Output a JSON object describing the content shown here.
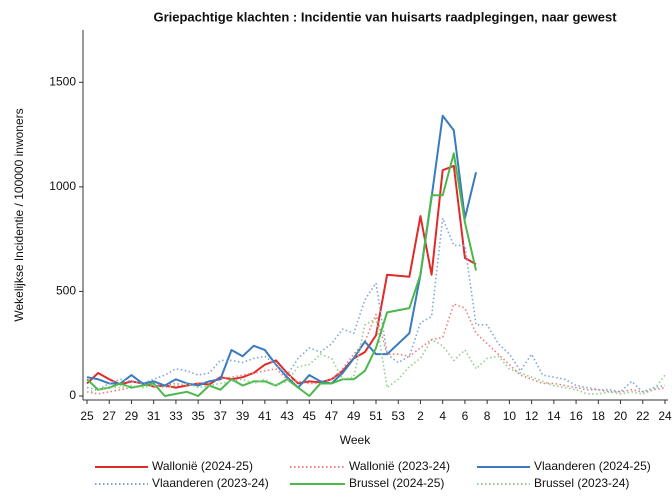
{
  "chart_data": {
    "type": "line",
    "title": "Griepachtige klachten : Incidentie van huisarts raadplegingen, naar gewest",
    "x_label": "Week",
    "y_label": "Wekelijkse Incidentie / 100000 inwoners",
    "categories": [
      25,
      null,
      27,
      null,
      29,
      null,
      31,
      null,
      33,
      null,
      35,
      null,
      37,
      null,
      39,
      null,
      41,
      null,
      43,
      null,
      45,
      null,
      47,
      null,
      49,
      null,
      51,
      null,
      53,
      null,
      2,
      null,
      4,
      null,
      6,
      null,
      8,
      null,
      10,
      null,
      12,
      null,
      14,
      null,
      16,
      null,
      18,
      null,
      20,
      null,
      22,
      null,
      24
    ],
    "ylim": [
      0,
      1750
    ],
    "yticks": [
      0,
      500,
      1000,
      1500
    ],
    "legend": "bottom",
    "series": [
      {
        "name": "Wallonië (2024-25)",
        "color": "#e02a2a",
        "style": "solid",
        "values": [
          60,
          110,
          80,
          55,
          70,
          60,
          45,
          50,
          40,
          50,
          60,
          55,
          90,
          80,
          90,
          110,
          150,
          170,
          110,
          60,
          70,
          65,
          80,
          120,
          180,
          210,
          290,
          580,
          575,
          570,
          860,
          580,
          1080,
          1100,
          660,
          630,
          null,
          null,
          null,
          null,
          null,
          null,
          null,
          null,
          null,
          null,
          null,
          null,
          null,
          null,
          null,
          null,
          null
        ]
      },
      {
        "name": "Wallonië (2023-24)",
        "color": "#f07c7c",
        "style": "dotted",
        "values": [
          20,
          10,
          20,
          30,
          40,
          50,
          60,
          50,
          60,
          50,
          60,
          70,
          80,
          90,
          100,
          110,
          120,
          130,
          80,
          70,
          60,
          60,
          80,
          130,
          200,
          260,
          390,
          200,
          200,
          190,
          230,
          270,
          280,
          440,
          420,
          300,
          250,
          200,
          150,
          100,
          80,
          60,
          60,
          50,
          40,
          30,
          30,
          20,
          20,
          30,
          20,
          30,
          40
        ]
      },
      {
        "name": "Vlaanderen (2024-25)",
        "color": "#3a7bbf",
        "style": "solid",
        "values": [
          90,
          80,
          60,
          60,
          100,
          60,
          70,
          50,
          80,
          60,
          50,
          70,
          80,
          220,
          190,
          240,
          220,
          150,
          90,
          40,
          100,
          70,
          60,
          110,
          180,
          260,
          200,
          200,
          250,
          300,
          580,
          950,
          1340,
          1270,
          850,
          1070,
          null,
          null,
          null,
          null,
          null,
          null,
          null,
          null,
          null,
          null,
          null,
          null,
          null,
          null,
          null,
          null,
          null
        ]
      },
      {
        "name": "Vlaanderen (2023-24)",
        "color": "#7ea6d8",
        "style": "dotted",
        "values": [
          40,
          30,
          60,
          80,
          70,
          60,
          80,
          100,
          130,
          120,
          100,
          110,
          170,
          170,
          160,
          180,
          190,
          150,
          100,
          180,
          230,
          210,
          250,
          320,
          300,
          460,
          540,
          200,
          160,
          190,
          350,
          380,
          850,
          720,
          720,
          340,
          340,
          250,
          200,
          120,
          200,
          100,
          90,
          80,
          50,
          40,
          30,
          30,
          20,
          70,
          20,
          40,
          50
        ]
      },
      {
        "name": "Brussel (2024-25)",
        "color": "#4cb84c",
        "style": "solid",
        "values": [
          80,
          30,
          40,
          60,
          40,
          50,
          60,
          0,
          10,
          20,
          0,
          50,
          30,
          80,
          50,
          70,
          70,
          50,
          80,
          40,
          0,
          60,
          60,
          80,
          80,
          120,
          230,
          400,
          410,
          420,
          580,
          960,
          960,
          1160,
          830,
          600,
          null,
          null,
          null,
          null,
          null,
          null,
          null,
          null,
          null,
          null,
          null,
          null,
          null,
          null,
          null,
          null,
          null
        ]
      },
      {
        "name": "Brussel (2023-24)",
        "color": "#8fd08f",
        "style": "dotted",
        "values": [
          20,
          30,
          40,
          40,
          50,
          40,
          50,
          40,
          50,
          60,
          40,
          50,
          60,
          70,
          80,
          60,
          80,
          50,
          70,
          140,
          150,
          200,
          180,
          80,
          90,
          340,
          370,
          40,
          80,
          140,
          180,
          270,
          240,
          170,
          220,
          130,
          180,
          190,
          130,
          110,
          90,
          70,
          50,
          40,
          30,
          10,
          10,
          20,
          10,
          20,
          10,
          30,
          100
        ]
      }
    ]
  }
}
